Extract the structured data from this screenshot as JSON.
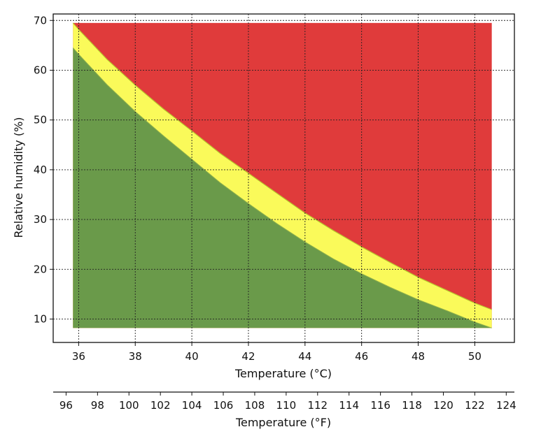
{
  "chart_data": {
    "type": "area",
    "xlabel": "Temperature (°C)",
    "ylabel": "Relative humidity (%)",
    "xlim": [
      35.1,
      51.4
    ],
    "ylim": [
      5.3,
      71.3
    ],
    "x_ticks": [
      36,
      38,
      40,
      42,
      44,
      46,
      48,
      50
    ],
    "y_ticks": [
      10,
      20,
      30,
      40,
      50,
      60,
      70
    ],
    "grid": true,
    "secondary_x_axis": {
      "label": "Temperature (°F)",
      "ticks": [
        96,
        98,
        100,
        102,
        104,
        106,
        108,
        110,
        112,
        114,
        116,
        118,
        120,
        122,
        124
      ]
    },
    "regions": {
      "x_range": [
        35.8,
        50.6
      ],
      "y_range": [
        8.2,
        69.5
      ],
      "colors": {
        "green": "#6a9a4a",
        "yellow": "#fafa5a",
        "red": "#e03b3b"
      }
    },
    "series": [
      {
        "color": "#fafa5a",
        "x": [
          35.8,
          36,
          37,
          38,
          39,
          40,
          41,
          42,
          43,
          44,
          45,
          46,
          47,
          48,
          49,
          50,
          50.6
        ],
        "values": [
          64.5,
          63.2,
          57.1,
          51.7,
          46.8,
          42.1,
          37.4,
          33.2,
          29.2,
          25.5,
          22.1,
          19.1,
          16.4,
          13.9,
          11.7,
          9.4,
          8.2
        ]
      },
      {
        "color": "#e03b3b",
        "x": [
          35.8,
          36,
          37,
          38,
          39,
          40,
          41,
          42,
          43,
          44,
          45,
          46,
          47,
          48,
          49,
          50,
          50.6
        ],
        "values": [
          69.5,
          68.2,
          62.2,
          57.0,
          52.2,
          47.8,
          43.3,
          39.3,
          35.3,
          31.3,
          27.8,
          24.5,
          21.4,
          18.4,
          15.8,
          13.2,
          11.9
        ]
      }
    ]
  }
}
